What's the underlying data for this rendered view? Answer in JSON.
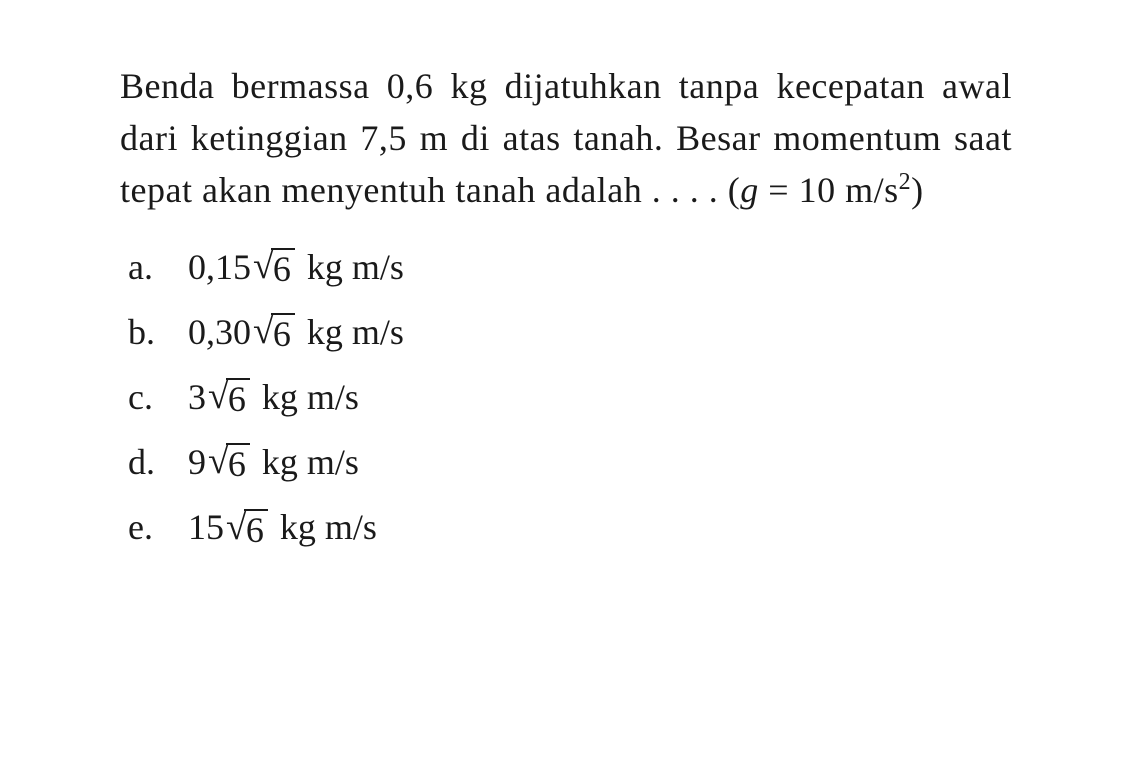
{
  "question": {
    "line1": "Benda bermassa 0,6 kg dijatuhkan tanpa",
    "line2": "kecepatan awal dari ketinggian 7,5 m di atas tanah.",
    "line3": "Besar momentum saat tepat akan menyentuh",
    "line4_prefix": "tanah adalah . . . . (",
    "line4_var": "g",
    "line4_eq": " = 10 m/s",
    "line4_exp": "2",
    "line4_suffix": ")"
  },
  "options": [
    {
      "label": "a.",
      "coeff": "0,15",
      "radicand": "6",
      "unit": "kg m/s"
    },
    {
      "label": "b.",
      "coeff": "0,30",
      "radicand": "6",
      "unit": "kg m/s"
    },
    {
      "label": "c.",
      "coeff": "3",
      "radicand": "6",
      "unit": "kg m/s"
    },
    {
      "label": "d.",
      "coeff": "9",
      "radicand": "6",
      "unit": "kg m/s"
    },
    {
      "label": "e.",
      "coeff": "15",
      "radicand": "6",
      "unit": "kg m/s"
    }
  ],
  "style": {
    "font_family": "Times New Roman",
    "font_size_pt": 27,
    "text_color": "#1a1a1a",
    "background_color": "#ffffff"
  }
}
